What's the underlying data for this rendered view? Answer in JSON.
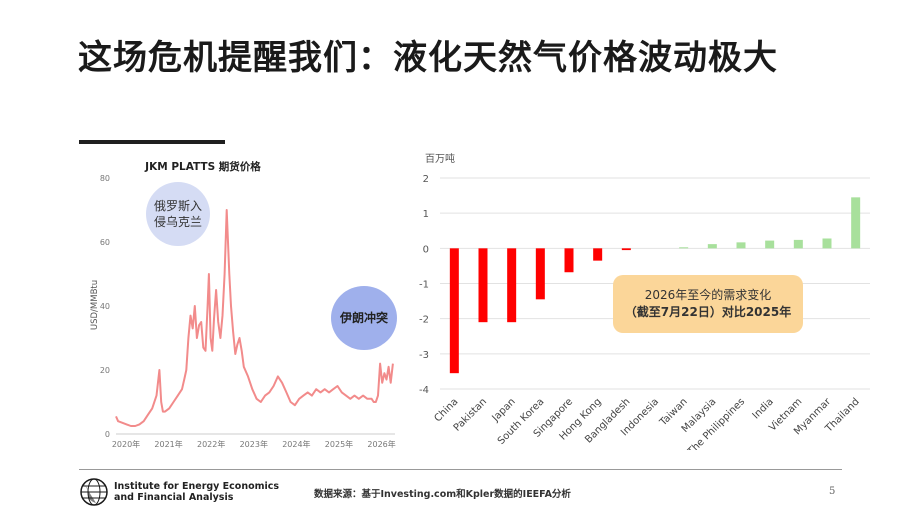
{
  "slide": {
    "title": "这场危机提醒我们：液化天然气价格波动极大",
    "source": "数据来源：基于Investing.com和Kpler数据的IEEFA分析",
    "page_number": "5",
    "org_line1": "Institute for Energy Economics",
    "org_line2": "and Financial Analysis"
  },
  "annotations": {
    "russia": "俄罗斯入侵乌克兰",
    "iran": "伊朗冲突",
    "callout_line1": "2026年至今的需求变化",
    "callout_line2": "（截至7月22日）对比2025年"
  },
  "colors": {
    "line": "#f28b8b",
    "negative": "#ff0000",
    "positive": "#a8e09c",
    "bubble_russia": "#d5dcf4",
    "bubble_iran": "#9fb0ec",
    "callout": "#fbd699"
  },
  "chart_data": [
    {
      "type": "line",
      "title": "JKM PLATTS 期货价格",
      "ylabel": "USD/MMBtu",
      "xlabel": "",
      "ylim": [
        0,
        80
      ],
      "yticks": [
        0,
        20,
        40,
        60,
        80
      ],
      "xlim": [
        2020.0,
        2026.55
      ],
      "xticks": [
        2020,
        2021,
        2022,
        2023,
        2024,
        2025,
        2026
      ],
      "xtick_labels": [
        "2020年",
        "2021年",
        "2022年",
        "2023年",
        "2024年",
        "2025年",
        "2026年"
      ],
      "grid": false,
      "series": [
        {
          "x": [
            2020.0,
            2020.05,
            2020.15,
            2020.25,
            2020.35,
            2020.45,
            2020.55,
            2020.65,
            2020.75,
            2020.85,
            2020.95,
            2021.02,
            2021.06,
            2021.1,
            2021.15,
            2021.25,
            2021.35,
            2021.45,
            2021.55,
            2021.6,
            2021.65,
            2021.7,
            2021.75,
            2021.8,
            2021.85,
            2021.9,
            2021.95,
            2022.0,
            2022.05,
            2022.1,
            2022.15,
            2022.18,
            2022.22,
            2022.26,
            2022.3,
            2022.35,
            2022.4,
            2022.45,
            2022.5,
            2022.55,
            2022.6,
            2022.63,
            2022.66,
            2022.7,
            2022.75,
            2022.8,
            2022.85,
            2022.9,
            2022.95,
            2023.0,
            2023.1,
            2023.2,
            2023.3,
            2023.4,
            2023.5,
            2023.6,
            2023.7,
            2023.8,
            2023.9,
            2024.0,
            2024.1,
            2024.2,
            2024.3,
            2024.4,
            2024.5,
            2024.6,
            2024.7,
            2024.8,
            2024.9,
            2025.0,
            2025.1,
            2025.2,
            2025.3,
            2025.4,
            2025.5,
            2025.6,
            2025.7,
            2025.8,
            2025.9,
            2026.0,
            2026.05,
            2026.1,
            2026.15,
            2026.2,
            2026.25,
            2026.3,
            2026.35,
            2026.4,
            2026.45,
            2026.5
          ],
          "y": [
            5.5,
            4,
            3.5,
            3,
            2.5,
            2.5,
            3,
            4,
            6,
            8,
            12,
            20,
            10,
            7,
            7,
            8,
            10,
            12,
            14,
            17,
            20,
            30,
            37,
            33,
            40,
            30,
            34,
            35,
            27,
            26,
            40,
            50,
            30,
            26,
            36,
            45,
            35,
            30,
            37,
            50,
            70,
            60,
            50,
            40,
            32,
            25,
            28,
            30,
            26,
            21,
            18,
            14,
            11,
            10,
            12,
            13,
            15,
            18,
            16,
            13,
            10,
            9,
            11,
            12,
            13,
            12,
            14,
            13,
            14,
            13,
            14,
            15,
            13,
            12,
            11,
            12,
            11,
            12,
            11,
            11,
            10,
            10,
            12,
            22,
            16,
            19,
            17,
            21,
            16,
            22
          ]
        }
      ]
    },
    {
      "type": "bar",
      "title": "",
      "ylabel": "百万吨",
      "xlabel": "",
      "ylim": [
        -4,
        2
      ],
      "yticks": [
        -4,
        -3,
        -2,
        -1,
        0,
        1,
        2
      ],
      "grid": true,
      "categories": [
        "China",
        "Pakistan",
        "Japan",
        "South Korea",
        "Singapore",
        "Hong Kong",
        "Bangladesh",
        "Indonesia",
        "Taiwan",
        "Malaysia",
        "The Philippines",
        "India",
        "Vietnam",
        "Myanmar",
        "Thailand"
      ],
      "values": [
        -3.55,
        -2.1,
        -2.1,
        -1.45,
        -0.68,
        -0.35,
        -0.05,
        0.0,
        0.03,
        0.12,
        0.17,
        0.22,
        0.24,
        0.28,
        1.45
      ]
    }
  ]
}
